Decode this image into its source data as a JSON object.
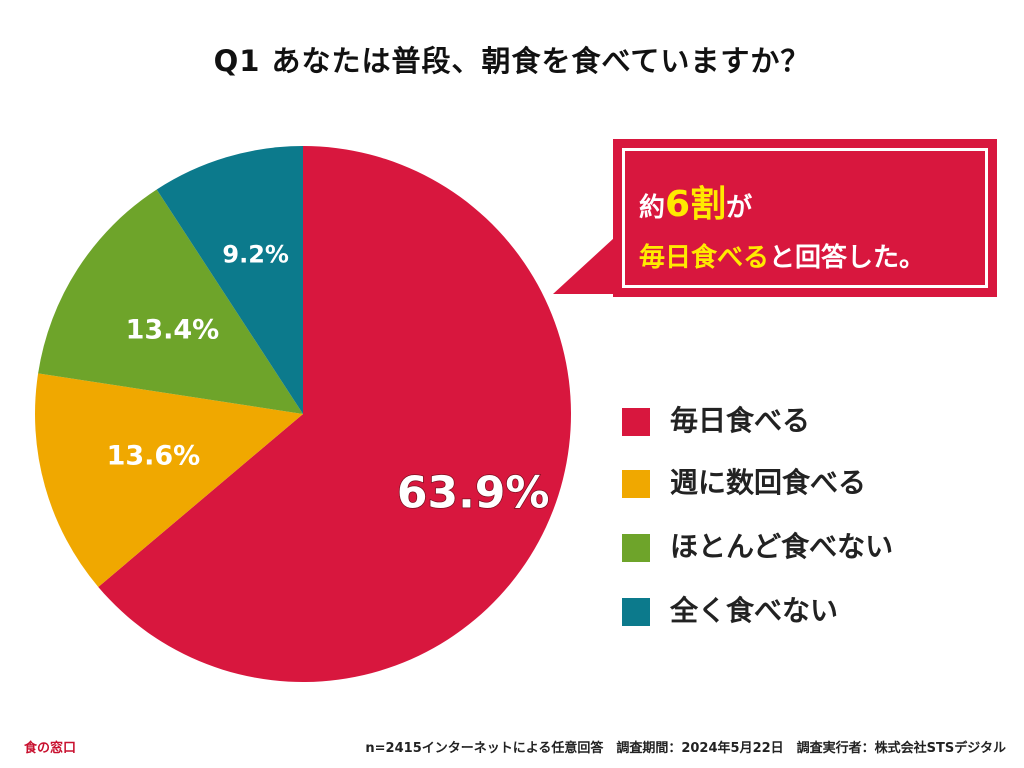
{
  "title": "Q1 あなたは普段、朝食を食べていますか？",
  "chart_data": {
    "type": "pie",
    "title": "Q1 あなたは普段、朝食を食べていますか？",
    "categories": [
      "毎日食べる",
      "週に数回食べる",
      "ほとんど食べない",
      "全く食べない"
    ],
    "values": [
      63.9,
      13.6,
      13.4,
      9.2
    ],
    "labels": [
      "63.9%",
      "13.6%",
      "13.4%",
      "9.2%"
    ],
    "colors": [
      "#d8173e",
      "#f0a800",
      "#6ea42a",
      "#0c7a8c"
    ],
    "legend_position": "right"
  },
  "callout": {
    "line1_prefix": "約",
    "line1_highlight": "6割",
    "line1_suffix": "が",
    "line2_highlight": "毎日食べる",
    "line2_suffix": "と回答した。"
  },
  "footer": {
    "source": "食の窓口",
    "note": "n=2415インターネットによる任意回答　調査期間：2024年5月22日　調査実行者：株式会社STSデジタル"
  }
}
